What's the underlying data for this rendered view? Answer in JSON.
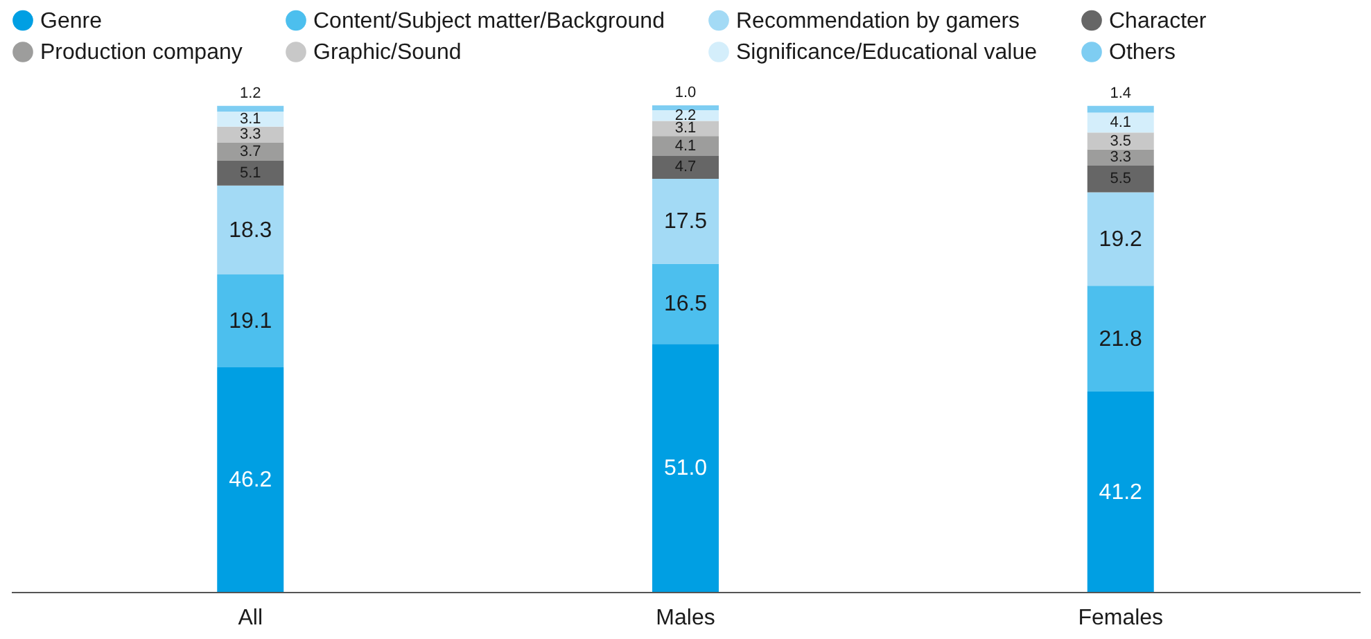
{
  "chart_data": {
    "type": "bar",
    "stacked": true,
    "legend": "top",
    "categories": [
      "All",
      "Males",
      "Females"
    ],
    "series": [
      {
        "name": "Genre",
        "color": "#009fe3",
        "values": [
          46.2,
          51.0,
          41.2
        ],
        "value_labels": [
          "46.2",
          "51.0",
          "41.2"
        ]
      },
      {
        "name": "Content/Subject matter/Background",
        "color": "#4cbfee",
        "values": [
          19.1,
          16.5,
          21.8
        ],
        "value_labels": [
          "19.1",
          "16.5",
          "21.8"
        ]
      },
      {
        "name": "Recommendation by gamers",
        "color": "#a3daf5",
        "values": [
          18.3,
          17.5,
          19.2
        ],
        "value_labels": [
          "18.3",
          "17.5",
          "19.2"
        ]
      },
      {
        "name": "Character",
        "color": "#666666",
        "values": [
          5.1,
          4.7,
          5.5
        ],
        "value_labels": [
          "5.1",
          "4.7",
          "5.5"
        ]
      },
      {
        "name": "Production company",
        "color": "#9d9d9c",
        "values": [
          3.7,
          4.1,
          3.3
        ],
        "value_labels": [
          "3.7",
          "4.1",
          "3.3"
        ]
      },
      {
        "name": "Graphic/Sound",
        "color": "#c8c8c8",
        "values": [
          3.3,
          3.1,
          3.5
        ],
        "value_labels": [
          "3.3",
          "3.1",
          "3.5"
        ]
      },
      {
        "name": "Significance/Educational value",
        "color": "#d4eefb",
        "values": [
          3.1,
          2.2,
          4.1
        ],
        "value_labels": [
          "3.1",
          "2.2",
          "4.1"
        ]
      },
      {
        "name": "Others",
        "color": "#7ecdf2",
        "values": [
          1.2,
          1.0,
          1.4
        ],
        "value_labels": [
          "1.2",
          "1.0",
          "1.4"
        ]
      }
    ]
  }
}
